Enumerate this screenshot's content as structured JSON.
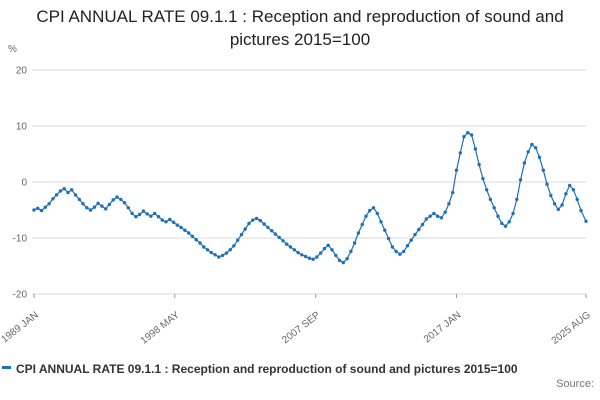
{
  "header": {
    "title": "CPI ANNUAL RATE 09.1.1 : Reception and reproduction of sound and pictures 2015=100"
  },
  "legend": {
    "label": "CPI ANNUAL RATE 09.1.1 : Reception and reproduction of sound and pictures 2015=100"
  },
  "source_label": "Source:",
  "colors": {
    "line": "#1d70b8",
    "grid": "#d9d9d9",
    "tick_text": "#666666",
    "tick_mark": "#999999"
  },
  "chart_data": {
    "type": "line",
    "title": "CPI ANNUAL RATE 09.1.1 : Reception and reproduction of sound and pictures 2015=100",
    "xlabel": "",
    "ylabel": "%",
    "ylim": [
      -20,
      20
    ],
    "xlim": [
      1989.0,
      2025.583
    ],
    "yticks": [
      20,
      10,
      0,
      -10,
      -20
    ],
    "xticks": [
      {
        "label": "1989 JAN",
        "x": 1989.0
      },
      {
        "label": "1998 MAY",
        "x": 1998.333
      },
      {
        "label": "2007 SEP",
        "x": 2007.667
      },
      {
        "label": "2017 JAN",
        "x": 2017.0
      },
      {
        "label": "2025 AUG",
        "x": 2025.583
      }
    ],
    "grid": true,
    "legend_position": "bottom-left",
    "series": [
      {
        "name": "CPI ANNUAL RATE 09.1.1 : Reception and reproduction of sound and pictures 2015=100",
        "points": [
          [
            1989.0,
            -5.0
          ],
          [
            1989.25,
            -4.7
          ],
          [
            1989.5,
            -5.1
          ],
          [
            1989.75,
            -4.5
          ],
          [
            1990.0,
            -3.9
          ],
          [
            1990.25,
            -3.0
          ],
          [
            1990.5,
            -2.3
          ],
          [
            1990.75,
            -1.6
          ],
          [
            1991.0,
            -1.2
          ],
          [
            1991.25,
            -1.9
          ],
          [
            1991.5,
            -1.4
          ],
          [
            1991.75,
            -2.3
          ],
          [
            1992.0,
            -3.1
          ],
          [
            1992.25,
            -3.9
          ],
          [
            1992.5,
            -4.6
          ],
          [
            1992.75,
            -5.0
          ],
          [
            1993.0,
            -4.5
          ],
          [
            1993.25,
            -3.8
          ],
          [
            1993.5,
            -4.3
          ],
          [
            1993.75,
            -4.8
          ],
          [
            1994.0,
            -4.0
          ],
          [
            1994.25,
            -3.2
          ],
          [
            1994.5,
            -2.7
          ],
          [
            1994.75,
            -3.1
          ],
          [
            1995.0,
            -3.7
          ],
          [
            1995.25,
            -4.6
          ],
          [
            1995.5,
            -5.6
          ],
          [
            1995.75,
            -6.2
          ],
          [
            1996.0,
            -5.8
          ],
          [
            1996.25,
            -5.2
          ],
          [
            1996.5,
            -5.7
          ],
          [
            1996.75,
            -6.1
          ],
          [
            1997.0,
            -5.6
          ],
          [
            1997.25,
            -6.2
          ],
          [
            1997.5,
            -6.8
          ],
          [
            1997.75,
            -7.1
          ],
          [
            1998.0,
            -6.7
          ],
          [
            1998.25,
            -7.2
          ],
          [
            1998.5,
            -7.7
          ],
          [
            1998.75,
            -8.1
          ],
          [
            1999.0,
            -8.6
          ],
          [
            1999.25,
            -9.1
          ],
          [
            1999.5,
            -9.7
          ],
          [
            1999.75,
            -10.3
          ],
          [
            2000.0,
            -10.9
          ],
          [
            2000.25,
            -11.6
          ],
          [
            2000.5,
            -12.1
          ],
          [
            2000.75,
            -12.6
          ],
          [
            2001.0,
            -13.0
          ],
          [
            2001.25,
            -13.4
          ],
          [
            2001.5,
            -13.1
          ],
          [
            2001.75,
            -12.7
          ],
          [
            2002.0,
            -12.1
          ],
          [
            2002.25,
            -11.4
          ],
          [
            2002.5,
            -10.4
          ],
          [
            2002.75,
            -9.4
          ],
          [
            2003.0,
            -8.4
          ],
          [
            2003.25,
            -7.4
          ],
          [
            2003.5,
            -6.8
          ],
          [
            2003.75,
            -6.5
          ],
          [
            2004.0,
            -6.9
          ],
          [
            2004.25,
            -7.5
          ],
          [
            2004.5,
            -8.1
          ],
          [
            2004.75,
            -8.7
          ],
          [
            2005.0,
            -9.3
          ],
          [
            2005.25,
            -9.9
          ],
          [
            2005.5,
            -10.5
          ],
          [
            2005.75,
            -11.1
          ],
          [
            2006.0,
            -11.6
          ],
          [
            2006.25,
            -12.1
          ],
          [
            2006.5,
            -12.6
          ],
          [
            2006.75,
            -13.0
          ],
          [
            2007.0,
            -13.3
          ],
          [
            2007.25,
            -13.6
          ],
          [
            2007.5,
            -13.8
          ],
          [
            2007.75,
            -13.4
          ],
          [
            2008.0,
            -12.7
          ],
          [
            2008.25,
            -11.9
          ],
          [
            2008.5,
            -11.3
          ],
          [
            2008.75,
            -12.1
          ],
          [
            2009.0,
            -13.1
          ],
          [
            2009.25,
            -14.0
          ],
          [
            2009.5,
            -14.4
          ],
          [
            2009.75,
            -13.7
          ],
          [
            2010.0,
            -12.4
          ],
          [
            2010.25,
            -10.9
          ],
          [
            2010.5,
            -9.1
          ],
          [
            2010.75,
            -7.6
          ],
          [
            2011.0,
            -6.1
          ],
          [
            2011.25,
            -5.1
          ],
          [
            2011.5,
            -4.6
          ],
          [
            2011.75,
            -5.6
          ],
          [
            2012.0,
            -7.1
          ],
          [
            2012.25,
            -8.6
          ],
          [
            2012.5,
            -10.1
          ],
          [
            2012.75,
            -11.6
          ],
          [
            2013.0,
            -12.4
          ],
          [
            2013.25,
            -12.9
          ],
          [
            2013.5,
            -12.4
          ],
          [
            2013.75,
            -11.4
          ],
          [
            2014.0,
            -10.4
          ],
          [
            2014.25,
            -9.4
          ],
          [
            2014.5,
            -8.5
          ],
          [
            2014.75,
            -7.6
          ],
          [
            2015.0,
            -6.6
          ],
          [
            2015.25,
            -6.1
          ],
          [
            2015.5,
            -5.6
          ],
          [
            2015.75,
            -6.1
          ],
          [
            2016.0,
            -6.4
          ],
          [
            2016.25,
            -5.4
          ],
          [
            2016.5,
            -3.9
          ],
          [
            2016.75,
            -1.9
          ],
          [
            2017.0,
            2.1
          ],
          [
            2017.25,
            5.2
          ],
          [
            2017.5,
            8.1
          ],
          [
            2017.75,
            8.8
          ],
          [
            2018.0,
            8.4
          ],
          [
            2018.25,
            5.9
          ],
          [
            2018.5,
            3.1
          ],
          [
            2018.75,
            0.6
          ],
          [
            2019.0,
            -1.4
          ],
          [
            2019.25,
            -3.1
          ],
          [
            2019.5,
            -4.6
          ],
          [
            2019.75,
            -6.1
          ],
          [
            2020.0,
            -7.4
          ],
          [
            2020.25,
            -7.9
          ],
          [
            2020.5,
            -7.1
          ],
          [
            2020.75,
            -5.6
          ],
          [
            2021.0,
            -3.1
          ],
          [
            2021.25,
            0.4
          ],
          [
            2021.5,
            3.4
          ],
          [
            2021.75,
            5.4
          ],
          [
            2022.0,
            6.7
          ],
          [
            2022.25,
            6.1
          ],
          [
            2022.5,
            4.4
          ],
          [
            2022.75,
            2.1
          ],
          [
            2023.0,
            -0.4
          ],
          [
            2023.25,
            -2.4
          ],
          [
            2023.5,
            -3.9
          ],
          [
            2023.75,
            -4.9
          ],
          [
            2024.0,
            -4.1
          ],
          [
            2024.25,
            -2.1
          ],
          [
            2024.5,
            -0.6
          ],
          [
            2024.75,
            -1.4
          ],
          [
            2025.0,
            -3.1
          ],
          [
            2025.25,
            -5.1
          ],
          [
            2025.583,
            -7.0
          ]
        ]
      }
    ]
  }
}
